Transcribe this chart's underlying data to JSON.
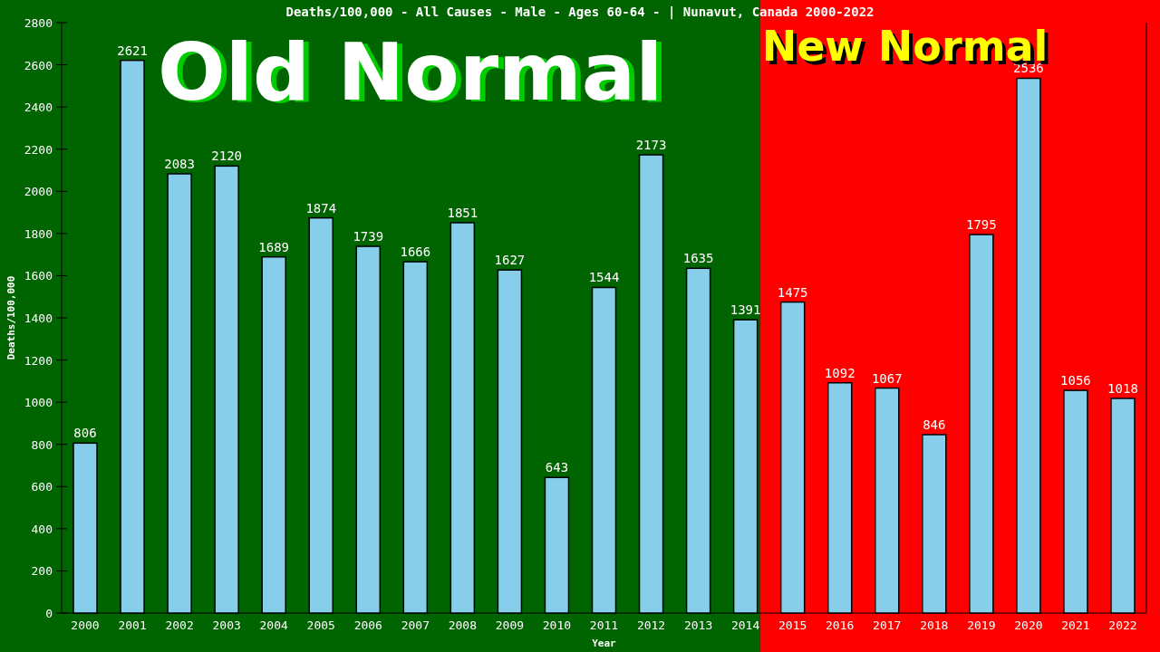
{
  "chart_data": {
    "type": "bar",
    "title": "Deaths/100,000 - All Causes - Male - Ages 60-64 -  | Nunavut, Canada 2000-2022",
    "xlabel": "Year",
    "ylabel": "Deaths/100,000",
    "categories": [
      "2000",
      "2001",
      "2002",
      "2003",
      "2004",
      "2005",
      "2006",
      "2007",
      "2008",
      "2009",
      "2010",
      "2011",
      "2012",
      "2013",
      "2014",
      "2015",
      "2016",
      "2017",
      "2018",
      "2019",
      "2020",
      "2021",
      "2022"
    ],
    "values": [
      806,
      2621,
      2083,
      2120,
      1689,
      1874,
      1739,
      1666,
      1851,
      1627,
      643,
      1544,
      2173,
      1635,
      1391,
      1475,
      1092,
      1067,
      846,
      1795,
      2536,
      1056,
      1018
    ],
    "color": "#87ceeb",
    "grid": false,
    "data_labels": true,
    "ylim": [
      0,
      2800
    ],
    "yticks": [
      0,
      200,
      400,
      600,
      800,
      1000,
      1200,
      1400,
      1600,
      1800,
      2000,
      2200,
      2400,
      2600,
      2800
    ],
    "bands": [
      {
        "axis": "x",
        "from": "2000",
        "to": "2014",
        "label": "Old Normal",
        "color": "#006400"
      },
      {
        "axis": "x",
        "from": "2014",
        "to": "2022",
        "label": "New Normal",
        "color": "#ff0000"
      }
    ]
  }
}
